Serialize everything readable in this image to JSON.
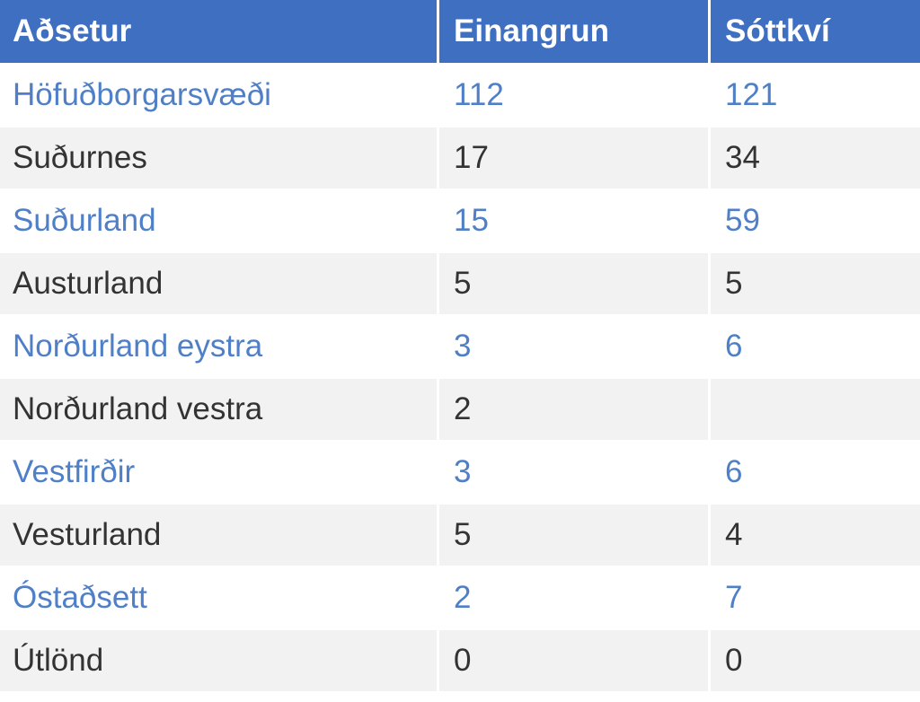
{
  "table": {
    "headers": [
      "Aðsetur",
      "Einangrun",
      "Sóttkví"
    ],
    "rows": [
      {
        "region": "Höfuðborgarsvæði",
        "einangrun": "112",
        "sottkvi": "121"
      },
      {
        "region": "Suðurnes",
        "einangrun": "17",
        "sottkvi": "34"
      },
      {
        "region": "Suðurland",
        "einangrun": "15",
        "sottkvi": "59"
      },
      {
        "region": "Austurland",
        "einangrun": "5",
        "sottkvi": "5"
      },
      {
        "region": "Norðurland eystra",
        "einangrun": "3",
        "sottkvi": "6"
      },
      {
        "region": "Norðurland vestra",
        "einangrun": "2",
        "sottkvi": ""
      },
      {
        "region": "Vestfirðir",
        "einangrun": "3",
        "sottkvi": "6"
      },
      {
        "region": "Vesturland",
        "einangrun": "5",
        "sottkvi": "4"
      },
      {
        "region": "Óstaðsett",
        "einangrun": "2",
        "sottkvi": "7"
      },
      {
        "region": "Útlönd",
        "einangrun": "0",
        "sottkvi": "0"
      }
    ]
  },
  "colors": {
    "header_bg": "#3f6fc1",
    "header_text": "#ffffff",
    "accent_text": "#4f7fc6",
    "body_text": "#333333",
    "stripe_bg": "#f2f2f2"
  }
}
